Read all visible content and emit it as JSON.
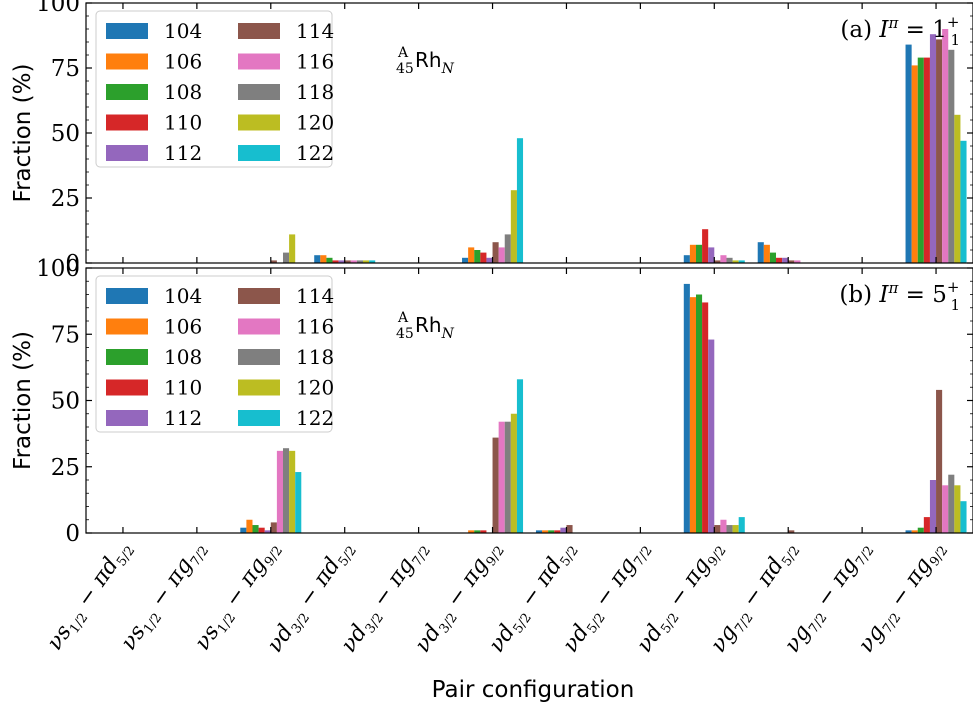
{
  "chart_data": {
    "type": "bar",
    "xlabel": "Pair configuration",
    "ylabel": "Fraction (%)",
    "ylim": [
      0,
      100
    ],
    "yticks": [
      0,
      25,
      50,
      75,
      100
    ],
    "categories": [
      "νs1/2 − πd5/2",
      "νs1/2 − πg7/2",
      "νs1/2 − πg9/2",
      "νd3/2 − πd5/2",
      "νd3/2 − πg7/2",
      "νd3/2 − πg9/2",
      "νd5/2 − πd5/2",
      "νd5/2 − πg7/2",
      "νd5/2 − πg9/2",
      "νg7/2 − πd5/2",
      "νg7/2 − πg7/2",
      "νg7/2 − πg9/2"
    ],
    "categories_math": [
      [
        "s",
        "1/2",
        "d",
        "5/2"
      ],
      [
        "s",
        "1/2",
        "g",
        "7/2"
      ],
      [
        "s",
        "1/2",
        "g",
        "9/2"
      ],
      [
        "d",
        "3/2",
        "d",
        "5/2"
      ],
      [
        "d",
        "3/2",
        "g",
        "7/2"
      ],
      [
        "d",
        "3/2",
        "g",
        "9/2"
      ],
      [
        "d",
        "5/2",
        "d",
        "5/2"
      ],
      [
        "d",
        "5/2",
        "g",
        "7/2"
      ],
      [
        "d",
        "5/2",
        "g",
        "9/2"
      ],
      [
        "g",
        "7/2",
        "d",
        "5/2"
      ],
      [
        "g",
        "7/2",
        "g",
        "7/2"
      ],
      [
        "g",
        "7/2",
        "g",
        "9/2"
      ]
    ],
    "series_names": [
      "104",
      "106",
      "108",
      "110",
      "112",
      "114",
      "116",
      "118",
      "120",
      "122"
    ],
    "series_colors": [
      "#1f77b4",
      "#ff7f0e",
      "#2ca02c",
      "#d62728",
      "#9467bd",
      "#8c564b",
      "#e377c2",
      "#7f7f7f",
      "#bcbd22",
      "#17becf"
    ],
    "nucleus_label": "Rh",
    "nucleus_mass": "A",
    "nucleus_z": "45",
    "nucleus_n": "N",
    "panels": [
      {
        "label": "(a)",
        "spin": "1",
        "spin_sub": "1",
        "parity": "+",
        "legend_position": "top-left",
        "values": [
          [
            0,
            0,
            0,
            0,
            0,
            0,
            0,
            0,
            0,
            0
          ],
          [
            0,
            0,
            0,
            0,
            0,
            0,
            0,
            0,
            0,
            0
          ],
          [
            0,
            0,
            0,
            0,
            0,
            1,
            0,
            4,
            11,
            0
          ],
          [
            3,
            3,
            2,
            1,
            1,
            1,
            1,
            1,
            1,
            1
          ],
          [
            0,
            0,
            0,
            0,
            0,
            0,
            0,
            0,
            0,
            0
          ],
          [
            2,
            6,
            5,
            4,
            2,
            8,
            6,
            11,
            28,
            48
          ],
          [
            0,
            0,
            0,
            0,
            0,
            0,
            0,
            0,
            0,
            0
          ],
          [
            0,
            0,
            0,
            0,
            0,
            0,
            0,
            0,
            0,
            0
          ],
          [
            3,
            7,
            7,
            13,
            6,
            1,
            3,
            2,
            1,
            1
          ],
          [
            8,
            7,
            4,
            2,
            2,
            1,
            1,
            0,
            0,
            0
          ],
          [
            0,
            0,
            0,
            0,
            0,
            0,
            0,
            0,
            0,
            0
          ],
          [
            84,
            76,
            79,
            79,
            88,
            86,
            90,
            82,
            57,
            47
          ]
        ]
      },
      {
        "label": "(b)",
        "spin": "5",
        "spin_sub": "1",
        "parity": "+",
        "legend_position": "top-left",
        "values": [
          [
            0,
            0,
            0,
            0,
            0,
            0,
            0,
            0,
            0,
            0
          ],
          [
            0,
            0,
            0,
            0,
            0,
            0,
            0,
            0,
            0,
            0
          ],
          [
            2,
            5,
            3,
            2,
            1,
            4,
            31,
            32,
            31,
            23
          ],
          [
            0,
            0,
            0,
            0,
            0,
            0,
            0,
            0,
            0,
            0
          ],
          [
            0,
            0,
            0,
            0,
            0,
            0,
            0,
            0,
            0,
            0
          ],
          [
            0,
            1,
            1,
            1,
            0,
            36,
            42,
            42,
            45,
            58
          ],
          [
            1,
            1,
            1,
            1,
            2,
            3,
            0,
            0,
            0,
            0
          ],
          [
            0,
            0,
            0,
            0,
            0,
            0,
            0,
            0,
            0,
            0
          ],
          [
            94,
            89,
            90,
            87,
            73,
            3,
            5,
            3,
            3,
            6
          ],
          [
            0,
            0,
            0,
            0,
            0,
            1,
            0,
            0,
            0,
            0
          ],
          [
            0,
            0,
            0,
            0,
            0,
            0,
            0,
            0,
            0,
            0
          ],
          [
            1,
            1,
            2,
            6,
            20,
            54,
            18,
            22,
            18,
            12
          ]
        ]
      }
    ]
  }
}
